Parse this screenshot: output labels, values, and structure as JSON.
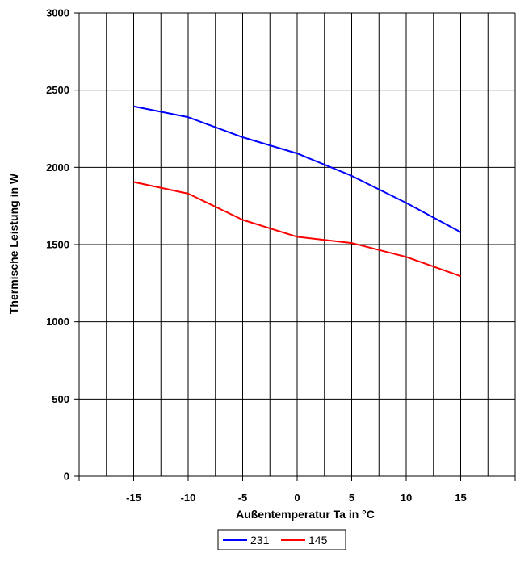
{
  "chart_data": {
    "type": "line",
    "title": "",
    "xlabel": "Außentemperatur Ta in °C",
    "ylabel": "Thermische Leistung in W",
    "x": [
      -15,
      -10,
      -5,
      0,
      5,
      10,
      15
    ],
    "xlim": [
      -20,
      20
    ],
    "ylim": [
      0,
      3000
    ],
    "x_ticks": [
      -15,
      -10,
      -5,
      0,
      5,
      10,
      15
    ],
    "x_tick_labels": [
      "-15",
      "-10",
      "-5",
      "0",
      "5",
      "10",
      "15"
    ],
    "y_ticks": [
      0,
      500,
      1000,
      1500,
      2000,
      2500,
      3000
    ],
    "y_tick_labels": [
      "0",
      "500",
      "1000",
      "1500",
      "2000",
      "2500",
      "3000"
    ],
    "grid": true,
    "legend_position": "bottom-center",
    "series": [
      {
        "name": "231",
        "color": "#0000ff",
        "values": [
          2395,
          2325,
          2195,
          2090,
          1945,
          1770,
          1580
        ]
      },
      {
        "name": "145",
        "color": "#ff0000",
        "values": [
          1905,
          1830,
          1660,
          1550,
          1510,
          1420,
          1295
        ]
      }
    ]
  }
}
